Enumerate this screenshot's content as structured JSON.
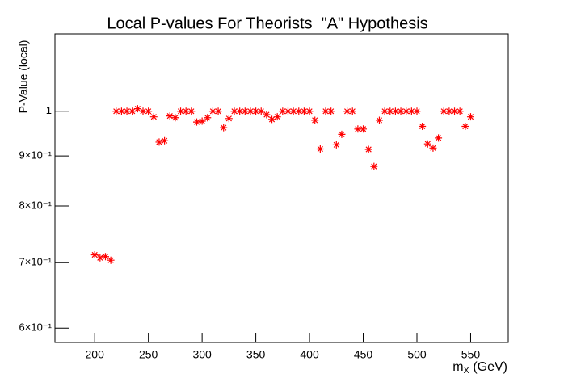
{
  "chart_data": {
    "type": "scatter",
    "title": "Local P-values For Theorists  \"A\" Hypothesis",
    "x_label": {
      "main": "m",
      "sub": "X",
      "unit": "(GeV)"
    },
    "y_label": "P-Value (local)",
    "log_y": true,
    "marker": "asterisk",
    "color": "#ff0000",
    "xlim": [
      163,
      585
    ],
    "ylim": [
      0.58,
      1.2
    ],
    "xticks": [
      200,
      250,
      300,
      350,
      400,
      450,
      500,
      550
    ],
    "yticks": [
      {
        "value": 0.6,
        "label": "6×10⁻¹"
      },
      {
        "value": 0.7,
        "label": "7×10⁻¹"
      },
      {
        "value": 0.8,
        "label": "8×10⁻¹"
      },
      {
        "value": 0.9,
        "label": "9×10⁻¹"
      },
      1
    ],
    "x": [
      200,
      205,
      210,
      215,
      220,
      225,
      230,
      235,
      240,
      245,
      250,
      255,
      260,
      265,
      270,
      275,
      280,
      285,
      290,
      295,
      300,
      305,
      310,
      315,
      320,
      325,
      330,
      335,
      340,
      345,
      350,
      355,
      360,
      365,
      370,
      375,
      380,
      385,
      390,
      395,
      400,
      405,
      410,
      415,
      420,
      425,
      430,
      435,
      440,
      445,
      450,
      455,
      460,
      465,
      470,
      475,
      480,
      485,
      490,
      495,
      500,
      505,
      510,
      515,
      520,
      525,
      530,
      535,
      540,
      545,
      550
    ],
    "values": [
      0.713,
      0.708,
      0.71,
      0.704,
      1,
      1,
      1,
      1,
      1.006,
      1,
      1,
      0.987,
      0.93,
      0.933,
      0.989,
      0.985,
      1,
      1,
      1,
      0.975,
      0.977,
      0.985,
      1,
      1,
      0.962,
      0.983,
      1,
      1,
      1,
      1,
      1,
      1,
      0.992,
      0.981,
      0.987,
      1,
      1,
      1,
      1,
      1,
      1,
      0.979,
      0.915,
      1,
      1,
      0.924,
      0.947,
      1,
      1,
      0.959,
      0.959,
      0.914,
      0.878,
      0.979,
      1,
      1,
      1,
      1,
      1,
      1,
      1,
      0.965,
      0.926,
      0.917,
      0.939,
      1,
      1,
      1,
      1,
      0.965,
      0.987
    ]
  }
}
